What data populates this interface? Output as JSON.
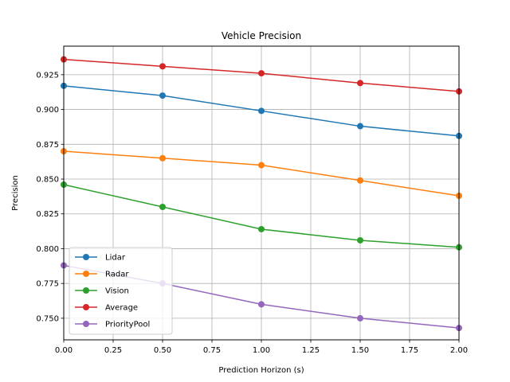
{
  "chart_data": {
    "type": "line",
    "title": "Vehicle Precision",
    "xlabel": "Prediction Horizon (s)",
    "ylabel": "Precision",
    "x": [
      0.0,
      0.5,
      1.0,
      1.5,
      2.0
    ],
    "xlim": [
      0.0,
      2.0
    ],
    "ylim": [
      0.7345,
      0.9455
    ],
    "xticks": [
      0.0,
      0.25,
      0.5,
      0.75,
      1.0,
      1.25,
      1.5,
      1.75,
      2.0
    ],
    "xtick_labels": [
      "0.00",
      "0.25",
      "0.50",
      "0.75",
      "1.00",
      "1.25",
      "1.50",
      "1.75",
      "2.00"
    ],
    "yticks": [
      0.75,
      0.775,
      0.8,
      0.825,
      0.85,
      0.875,
      0.9,
      0.925
    ],
    "ytick_labels": [
      "0.750",
      "0.775",
      "0.800",
      "0.825",
      "0.850",
      "0.875",
      "0.900",
      "0.925"
    ],
    "grid": true,
    "legend_position": "lower-left",
    "series": [
      {
        "name": "Lidar",
        "color": "#1f77b4",
        "values": [
          0.917,
          0.91,
          0.899,
          0.888,
          0.881
        ]
      },
      {
        "name": "Radar",
        "color": "#ff7f0e",
        "values": [
          0.87,
          0.865,
          0.86,
          0.849,
          0.838
        ]
      },
      {
        "name": "Vision",
        "color": "#2ca02c",
        "values": [
          0.846,
          0.83,
          0.814,
          0.806,
          0.801
        ]
      },
      {
        "name": "Average",
        "color": "#d62728",
        "values": [
          0.936,
          0.931,
          0.926,
          0.919,
          0.913
        ]
      },
      {
        "name": "PriorityPool",
        "color": "#9467bd",
        "values": [
          0.788,
          0.775,
          0.76,
          0.75,
          0.743
        ]
      }
    ]
  }
}
